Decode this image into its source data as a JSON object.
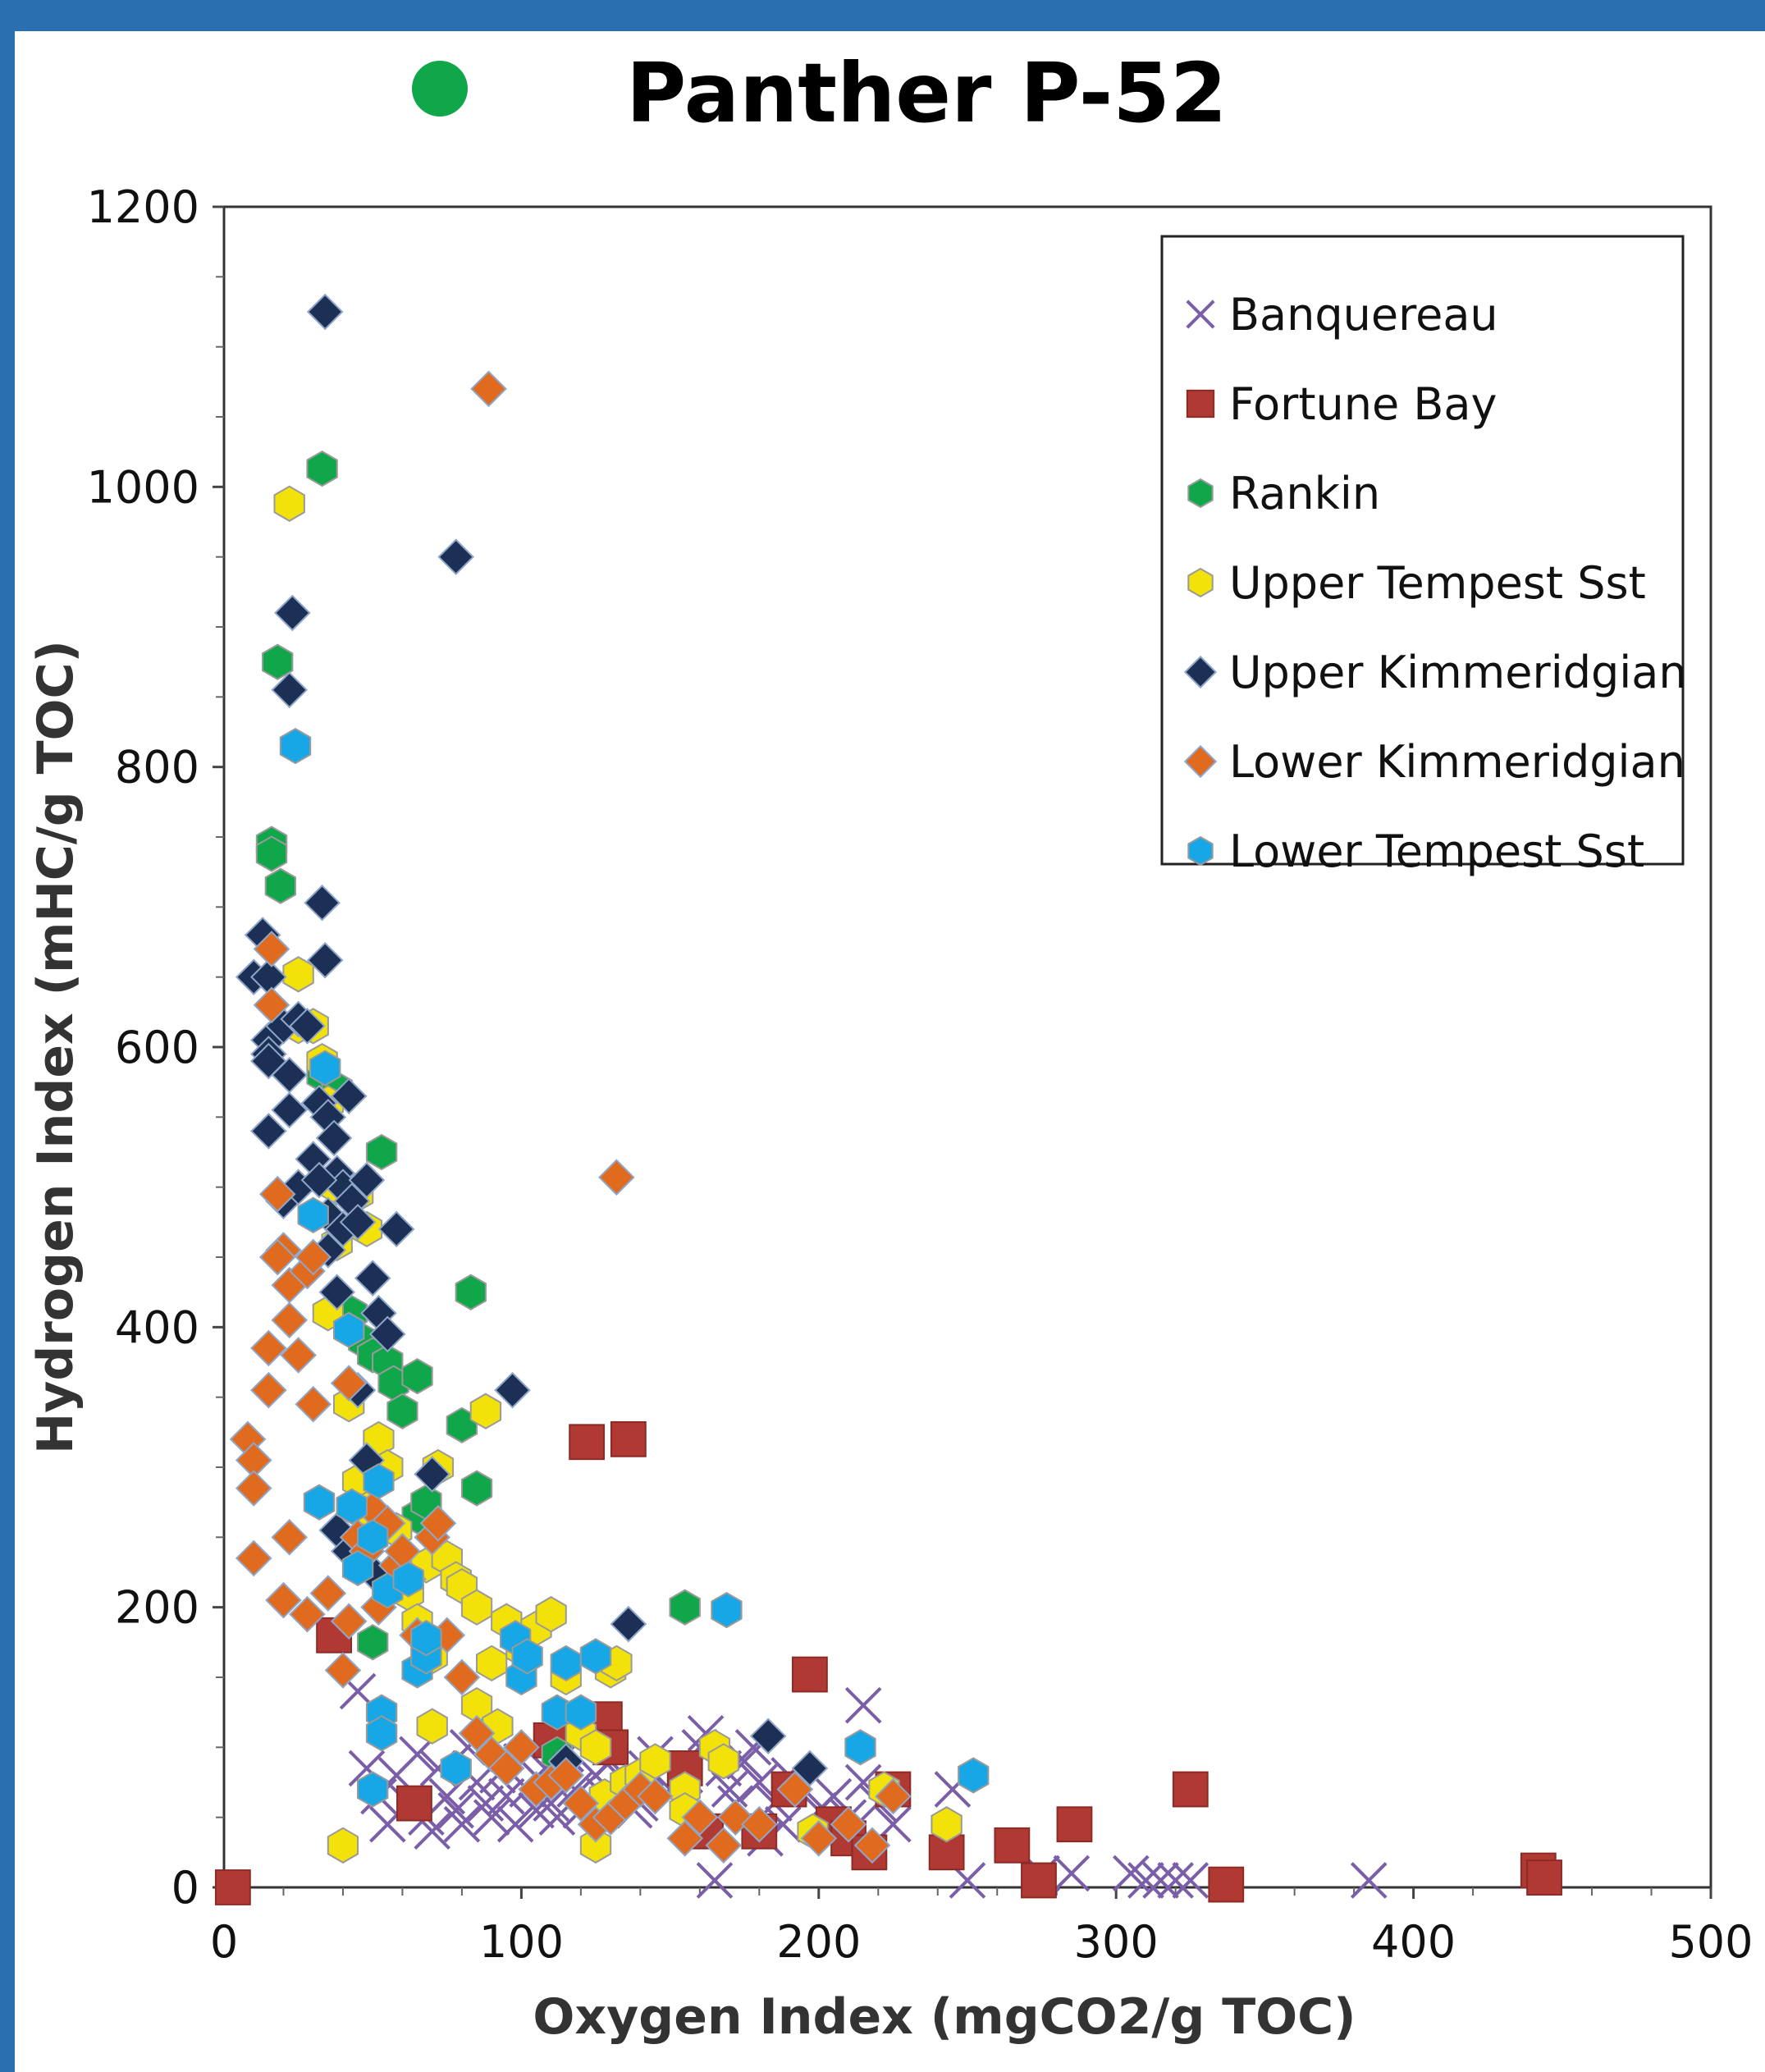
{
  "chart_data": {
    "type": "scatter",
    "title": "Panther P-52",
    "title_marker_color": "#10a64a",
    "xlabel": "Oxygen Index (mgCO2/g TOC)",
    "ylabel": "Hydrogen Index (mHC/g TOC)",
    "xlim": [
      0,
      500
    ],
    "ylim": [
      0,
      1200
    ],
    "xticks": [
      0,
      100,
      200,
      300,
      400,
      500
    ],
    "yticks": [
      0,
      200,
      400,
      600,
      800,
      1000,
      1200
    ],
    "grid": false,
    "legend_position": "top-right",
    "series": [
      {
        "name": "Banquereau",
        "marker": "x",
        "color": "#7a5ea8",
        "points": [
          [
            45,
            140
          ],
          [
            48,
            85
          ],
          [
            52,
            65
          ],
          [
            55,
            45
          ],
          [
            58,
            80
          ],
          [
            62,
            60
          ],
          [
            65,
            95
          ],
          [
            68,
            50
          ],
          [
            70,
            40
          ],
          [
            72,
            85
          ],
          [
            75,
            65
          ],
          [
            78,
            55
          ],
          [
            80,
            45
          ],
          [
            82,
            100
          ],
          [
            85,
            75
          ],
          [
            88,
            60
          ],
          [
            90,
            50
          ],
          [
            92,
            80
          ],
          [
            95,
            65
          ],
          [
            98,
            45
          ],
          [
            100,
            90
          ],
          [
            102,
            70
          ],
          [
            105,
            55
          ],
          [
            108,
            85
          ],
          [
            110,
            60
          ],
          [
            112,
            50
          ],
          [
            115,
            95
          ],
          [
            118,
            70
          ],
          [
            120,
            55
          ],
          [
            125,
            80
          ],
          [
            128,
            65
          ],
          [
            130,
            90
          ],
          [
            135,
            75
          ],
          [
            138,
            55
          ],
          [
            140,
            60
          ],
          [
            142,
            85
          ],
          [
            145,
            95
          ],
          [
            150,
            70
          ],
          [
            155,
            80
          ],
          [
            160,
            100
          ],
          [
            162,
            110
          ],
          [
            165,
            5
          ],
          [
            168,
            85
          ],
          [
            170,
            70
          ],
          [
            172,
            60
          ],
          [
            175,
            90
          ],
          [
            178,
            100
          ],
          [
            180,
            75
          ],
          [
            182,
            35
          ],
          [
            185,
            60
          ],
          [
            188,
            45
          ],
          [
            190,
            80
          ],
          [
            195,
            70
          ],
          [
            200,
            55
          ],
          [
            205,
            65
          ],
          [
            210,
            50
          ],
          [
            215,
            75
          ],
          [
            215,
            130
          ],
          [
            220,
            60
          ],
          [
            225,
            45
          ],
          [
            245,
            70
          ],
          [
            250,
            5
          ],
          [
            275,
            10
          ],
          [
            285,
            10
          ],
          [
            305,
            10
          ],
          [
            310,
            5
          ],
          [
            315,
            5
          ],
          [
            320,
            5
          ],
          [
            325,
            5
          ],
          [
            385,
            5
          ]
        ]
      },
      {
        "name": "Fortune Bay",
        "marker": "square",
        "color": "#b03a33",
        "points": [
          [
            3,
            0
          ],
          [
            37,
            180
          ],
          [
            64,
            60
          ],
          [
            110,
            105
          ],
          [
            122,
            318
          ],
          [
            128,
            120
          ],
          [
            136,
            320
          ],
          [
            130,
            100
          ],
          [
            155,
            85
          ],
          [
            162,
            40
          ],
          [
            180,
            40
          ],
          [
            190,
            70
          ],
          [
            197,
            152
          ],
          [
            205,
            45
          ],
          [
            210,
            35
          ],
          [
            217,
            25
          ],
          [
            225,
            70
          ],
          [
            243,
            25
          ],
          [
            265,
            30
          ],
          [
            274,
            5
          ],
          [
            286,
            45
          ],
          [
            325,
            70
          ],
          [
            337,
            2
          ],
          [
            442,
            12
          ],
          [
            444,
            7
          ]
        ]
      },
      {
        "name": "Rankin",
        "marker": "hexagon",
        "color": "#10a64a",
        "points": [
          [
            16,
            745
          ],
          [
            16,
            738
          ],
          [
            18,
            875
          ],
          [
            19,
            715
          ],
          [
            33,
            1013
          ],
          [
            33,
            580
          ],
          [
            38,
            570
          ],
          [
            43,
            410
          ],
          [
            47,
            390
          ],
          [
            50,
            380
          ],
          [
            50,
            175
          ],
          [
            53,
            525
          ],
          [
            55,
            375
          ],
          [
            57,
            360
          ],
          [
            60,
            340
          ],
          [
            65,
            365
          ],
          [
            65,
            265
          ],
          [
            68,
            275
          ],
          [
            80,
            330
          ],
          [
            83,
            425
          ],
          [
            85,
            285
          ],
          [
            112,
            95
          ],
          [
            155,
            200
          ]
        ]
      },
      {
        "name": "Upper Tempest Sst",
        "marker": "hexagon",
        "color": "#f2e20a",
        "points": [
          [
            22,
            988
          ],
          [
            25,
            652
          ],
          [
            25,
            615
          ],
          [
            30,
            615
          ],
          [
            33,
            590
          ],
          [
            35,
            560
          ],
          [
            38,
            500
          ],
          [
            45,
            495
          ],
          [
            48,
            470
          ],
          [
            38,
            460
          ],
          [
            35,
            410
          ],
          [
            42,
            345
          ],
          [
            45,
            290
          ],
          [
            48,
            270
          ],
          [
            52,
            320
          ],
          [
            55,
            300
          ],
          [
            58,
            255
          ],
          [
            62,
            210
          ],
          [
            65,
            190
          ],
          [
            68,
            230
          ],
          [
            72,
            300
          ],
          [
            75,
            235
          ],
          [
            78,
            220
          ],
          [
            70,
            165
          ],
          [
            80,
            215
          ],
          [
            85,
            200
          ],
          [
            88,
            340
          ],
          [
            90,
            160
          ],
          [
            95,
            190
          ],
          [
            100,
            170
          ],
          [
            105,
            185
          ],
          [
            110,
            195
          ],
          [
            115,
            150
          ],
          [
            120,
            110
          ],
          [
            125,
            100
          ],
          [
            125,
            30
          ],
          [
            128,
            65
          ],
          [
            130,
            155
          ],
          [
            132,
            160
          ],
          [
            135,
            75
          ],
          [
            140,
            80
          ],
          [
            145,
            90
          ],
          [
            155,
            70
          ],
          [
            155,
            55
          ],
          [
            165,
            100
          ],
          [
            168,
            90
          ],
          [
            198,
            40
          ],
          [
            222,
            70
          ],
          [
            243,
            45
          ],
          [
            40,
            30
          ],
          [
            70,
            115
          ],
          [
            85,
            130
          ],
          [
            92,
            115
          ]
        ]
      },
      {
        "name": "Upper Kimmeridgian",
        "marker": "diamond",
        "color": "#1c2f55",
        "points": [
          [
            34,
            1125
          ],
          [
            23,
            910
          ],
          [
            22,
            855
          ],
          [
            78,
            950
          ],
          [
            13,
            680
          ],
          [
            10,
            650
          ],
          [
            15,
            650
          ],
          [
            33,
            703
          ],
          [
            34,
            662
          ],
          [
            15,
            605
          ],
          [
            15,
            595
          ],
          [
            15,
            590
          ],
          [
            20,
            615
          ],
          [
            22,
            580
          ],
          [
            22,
            555
          ],
          [
            25,
            620
          ],
          [
            28,
            615
          ],
          [
            32,
            560
          ],
          [
            35,
            550
          ],
          [
            37,
            535
          ],
          [
            38,
            510
          ],
          [
            40,
            500
          ],
          [
            42,
            565
          ],
          [
            15,
            540
          ],
          [
            20,
            490
          ],
          [
            25,
            500
          ],
          [
            30,
            520
          ],
          [
            32,
            505
          ],
          [
            35,
            480
          ],
          [
            40,
            470
          ],
          [
            43,
            490
          ],
          [
            45,
            475
          ],
          [
            48,
            505
          ],
          [
            50,
            435
          ],
          [
            52,
            410
          ],
          [
            55,
            395
          ],
          [
            58,
            470
          ],
          [
            35,
            455
          ],
          [
            38,
            425
          ],
          [
            45,
            355
          ],
          [
            48,
            305
          ],
          [
            38,
            255
          ],
          [
            42,
            240
          ],
          [
            50,
            225
          ],
          [
            70,
            295
          ],
          [
            97,
            355
          ],
          [
            136,
            188
          ],
          [
            183,
            108
          ],
          [
            197,
            85
          ],
          [
            115,
            90
          ]
        ]
      },
      {
        "name": "Lower Kimmeridgian",
        "marker": "diamond",
        "color": "#e06a1e",
        "points": [
          [
            89,
            1070
          ],
          [
            132,
            507
          ],
          [
            16,
            670
          ],
          [
            16,
            630
          ],
          [
            18,
            495
          ],
          [
            20,
            455
          ],
          [
            18,
            450
          ],
          [
            22,
            430
          ],
          [
            22,
            405
          ],
          [
            25,
            380
          ],
          [
            28,
            440
          ],
          [
            30,
            450
          ],
          [
            15,
            385
          ],
          [
            15,
            355
          ],
          [
            30,
            345
          ],
          [
            8,
            320
          ],
          [
            10,
            305
          ],
          [
            10,
            285
          ],
          [
            10,
            235
          ],
          [
            20,
            205
          ],
          [
            22,
            250
          ],
          [
            28,
            195
          ],
          [
            42,
            190
          ],
          [
            40,
            155
          ],
          [
            45,
            250
          ],
          [
            48,
            240
          ],
          [
            50,
            270
          ],
          [
            52,
            200
          ],
          [
            55,
            260
          ],
          [
            58,
            230
          ],
          [
            60,
            240
          ],
          [
            62,
            220
          ],
          [
            65,
            180
          ],
          [
            70,
            250
          ],
          [
            72,
            260
          ],
          [
            75,
            180
          ],
          [
            80,
            150
          ],
          [
            85,
            110
          ],
          [
            90,
            95
          ],
          [
            95,
            85
          ],
          [
            100,
            100
          ],
          [
            105,
            70
          ],
          [
            110,
            75
          ],
          [
            115,
            80
          ],
          [
            120,
            60
          ],
          [
            125,
            45
          ],
          [
            130,
            50
          ],
          [
            135,
            60
          ],
          [
            140,
            70
          ],
          [
            145,
            65
          ],
          [
            155,
            35
          ],
          [
            160,
            50
          ],
          [
            168,
            30
          ],
          [
            172,
            50
          ],
          [
            180,
            45
          ],
          [
            192,
            70
          ],
          [
            200,
            35
          ],
          [
            210,
            45
          ],
          [
            218,
            30
          ],
          [
            225,
            65
          ],
          [
            42,
            360
          ],
          [
            35,
            210
          ]
        ]
      },
      {
        "name": "Lower Tempest Sst",
        "marker": "hexagon",
        "color": "#17a7e6",
        "points": [
          [
            24,
            815
          ],
          [
            34,
            585
          ],
          [
            30,
            480
          ],
          [
            42,
            398
          ],
          [
            32,
            275
          ],
          [
            43,
            272
          ],
          [
            45,
            228
          ],
          [
            50,
            250
          ],
          [
            52,
            290
          ],
          [
            53,
            125
          ],
          [
            53,
            110
          ],
          [
            55,
            212
          ],
          [
            62,
            220
          ],
          [
            65,
            155
          ],
          [
            68,
            165
          ],
          [
            68,
            178
          ],
          [
            78,
            85
          ],
          [
            98,
            178
          ],
          [
            100,
            150
          ],
          [
            102,
            165
          ],
          [
            112,
            125
          ],
          [
            115,
            160
          ],
          [
            120,
            125
          ],
          [
            125,
            165
          ],
          [
            50,
            70
          ],
          [
            169,
            198
          ],
          [
            214,
            100
          ],
          [
            252,
            80
          ]
        ]
      }
    ]
  }
}
